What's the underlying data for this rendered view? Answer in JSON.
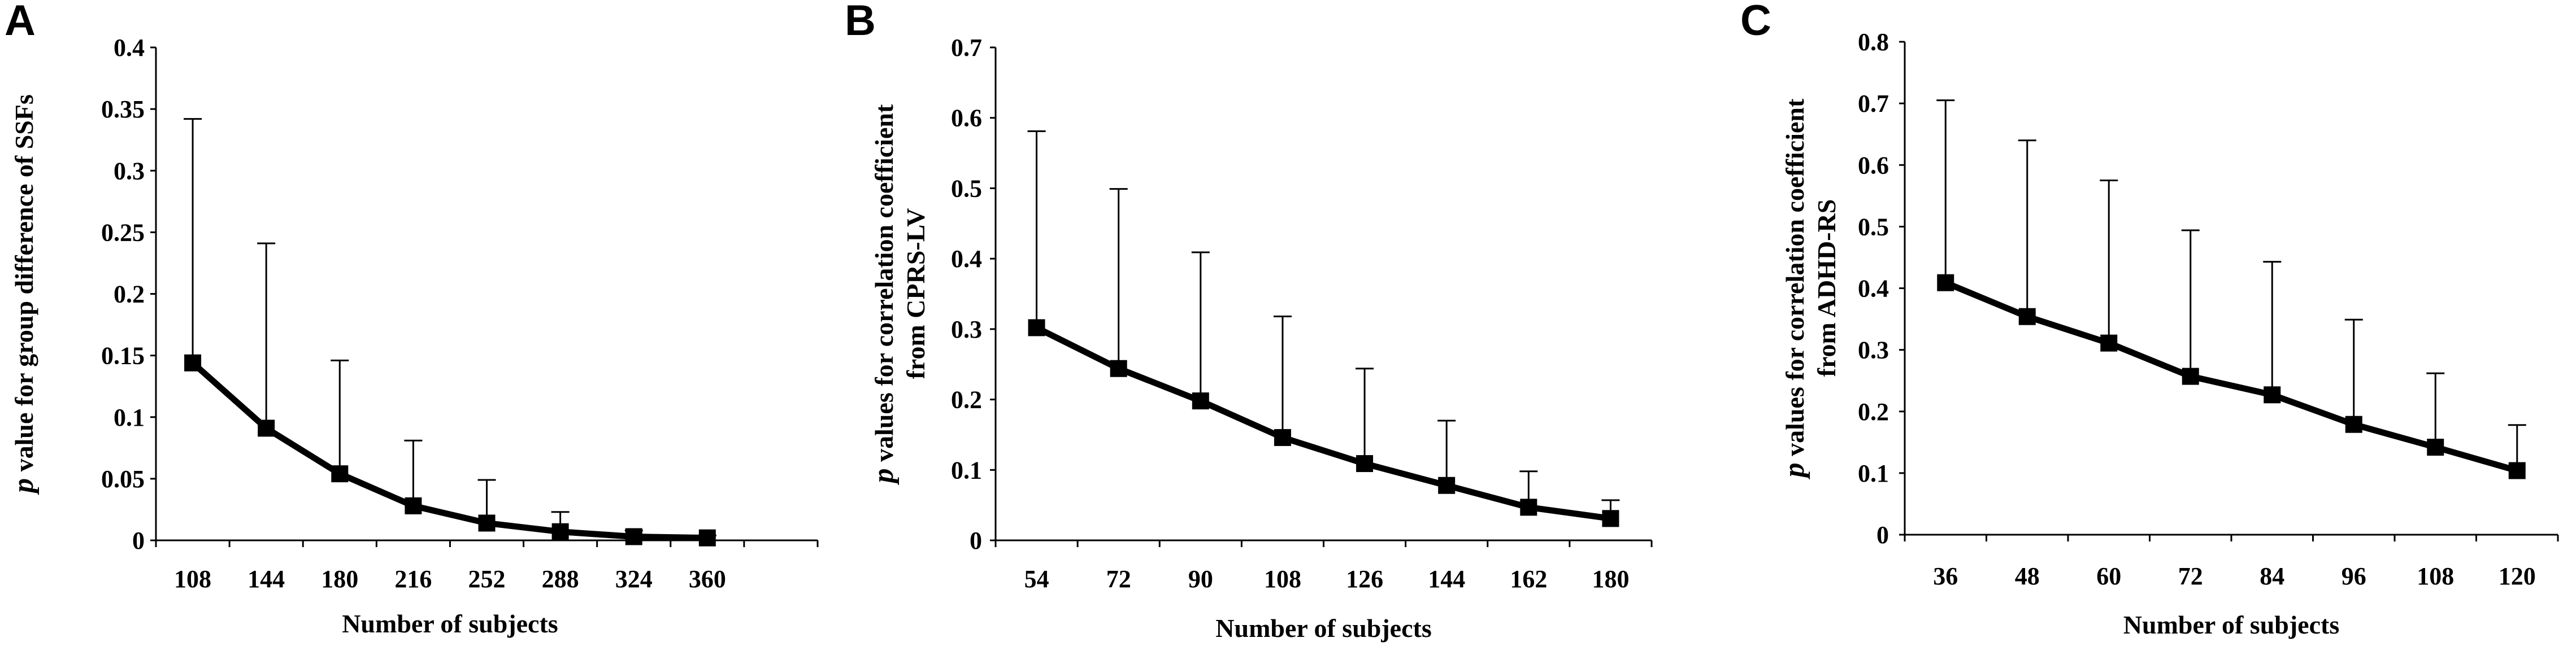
{
  "chart_data": [
    {
      "type": "line",
      "panel": "A",
      "xlabel": "Number of subjects",
      "ylabel_italic": "p",
      "ylabel_rest": " value for group difference of SSFs",
      "ylabel_line2": "",
      "categories": [
        "108",
        "144",
        "180",
        "216",
        "252",
        "288",
        "324",
        "360"
      ],
      "values": [
        0.144,
        0.091,
        0.054,
        0.028,
        0.014,
        0.007,
        0.003,
        0.002
      ],
      "error_upper": [
        0.342,
        0.241,
        0.146,
        0.081,
        0.049,
        0.023,
        0.008,
        0.004
      ],
      "yticks": [
        "0",
        "0.05",
        "0.1",
        "0.15",
        "0.2",
        "0.25",
        "0.3",
        "0.35",
        "0.4"
      ],
      "ylim": [
        0,
        0.4
      ],
      "grid": false,
      "extra_slots": 1
    },
    {
      "type": "line",
      "panel": "B",
      "xlabel": "Number of subjects",
      "ylabel_italic": "p",
      "ylabel_rest": " values for correlation coefficient",
      "ylabel_line2": "from CPRS-LV",
      "categories": [
        "54",
        "72",
        "90",
        "108",
        "126",
        "144",
        "162",
        "180"
      ],
      "values": [
        0.302,
        0.244,
        0.198,
        0.146,
        0.109,
        0.078,
        0.047,
        0.031
      ],
      "error_upper": [
        0.581,
        0.499,
        0.409,
        0.318,
        0.244,
        0.17,
        0.098,
        0.057
      ],
      "yticks": [
        "0",
        "0.1",
        "0.2",
        "0.3",
        "0.4",
        "0.5",
        "0.6",
        "0.7"
      ],
      "ylim": [
        0,
        0.7
      ],
      "grid": false,
      "extra_slots": 0
    },
    {
      "type": "line",
      "panel": "C",
      "xlabel": "Number of subjects",
      "ylabel_italic": "p",
      "ylabel_rest": " values for correlation coefficient",
      "ylabel_line2": "from ADHD-RS",
      "categories": [
        "36",
        "48",
        "60",
        "72",
        "84",
        "96",
        "108",
        "120"
      ],
      "values": [
        0.409,
        0.354,
        0.311,
        0.257,
        0.227,
        0.179,
        0.142,
        0.104
      ],
      "error_upper": [
        0.705,
        0.64,
        0.575,
        0.494,
        0.443,
        0.349,
        0.262,
        0.178
      ],
      "yticks": [
        "0",
        "0.1",
        "0.2",
        "0.3",
        "0.4",
        "0.5",
        "0.6",
        "0.7",
        "0.8"
      ],
      "ylim": [
        0,
        0.8
      ],
      "grid": false,
      "extra_slots": 0
    }
  ]
}
